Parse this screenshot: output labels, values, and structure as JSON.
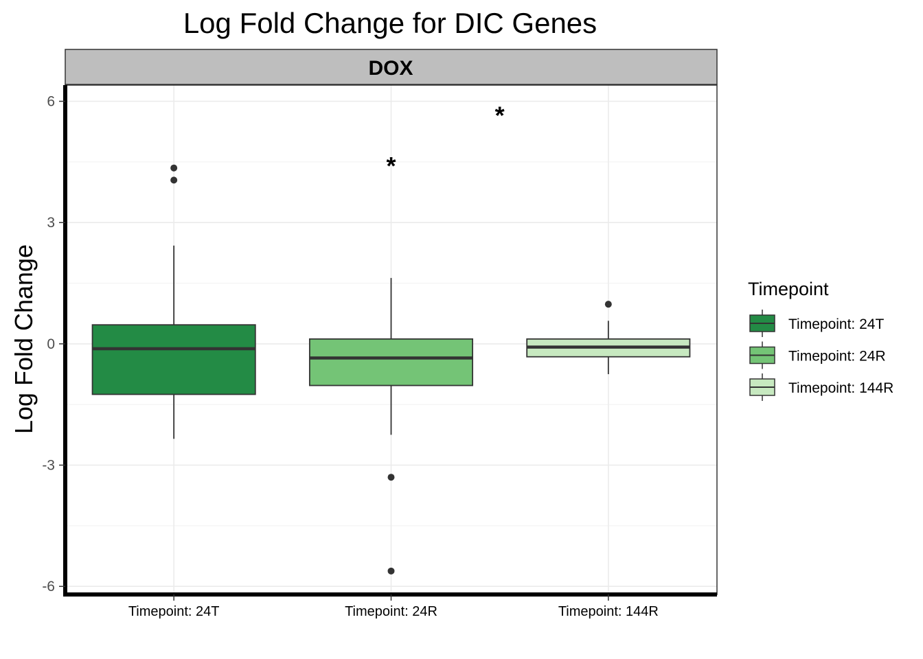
{
  "chart_data": {
    "type": "boxplot",
    "title": "Log Fold Change for DIC Genes",
    "facet": "DOX",
    "xlabel": "",
    "ylabel": "Log Fold Change",
    "ylim": [
      -6.2,
      6.4
    ],
    "yticks": [
      -6,
      -3,
      0,
      3,
      6
    ],
    "grid": true,
    "legend": {
      "title": "Timepoint",
      "placement": "right"
    },
    "categories": [
      "Timepoint: 24T",
      "Timepoint: 24R",
      "Timepoint: 144R"
    ],
    "series": [
      {
        "name": "Timepoint: 24T",
        "color": "#238b45",
        "whisker_low": -2.35,
        "q1": -1.25,
        "median": -0.12,
        "q3": 0.47,
        "whisker_high": 2.43,
        "outliers": [
          4.05,
          4.35
        ]
      },
      {
        "name": "Timepoint: 24R",
        "color": "#74c476",
        "whisker_low": -2.25,
        "q1": -1.03,
        "median": -0.35,
        "q3": 0.12,
        "whisker_high": 1.63,
        "outliers": [
          -3.3,
          -5.62
        ]
      },
      {
        "name": "Timepoint: 144R",
        "color": "#c7e9c0",
        "whisker_low": -0.75,
        "q1": -0.32,
        "median": -0.08,
        "q3": 0.12,
        "whisker_high": 0.57,
        "outliers": [
          0.98
        ]
      }
    ],
    "annotations": [
      {
        "text": "*",
        "x": 1,
        "y": 4.6
      },
      {
        "text": "*",
        "x": 1.5,
        "y": 5.85
      }
    ]
  }
}
